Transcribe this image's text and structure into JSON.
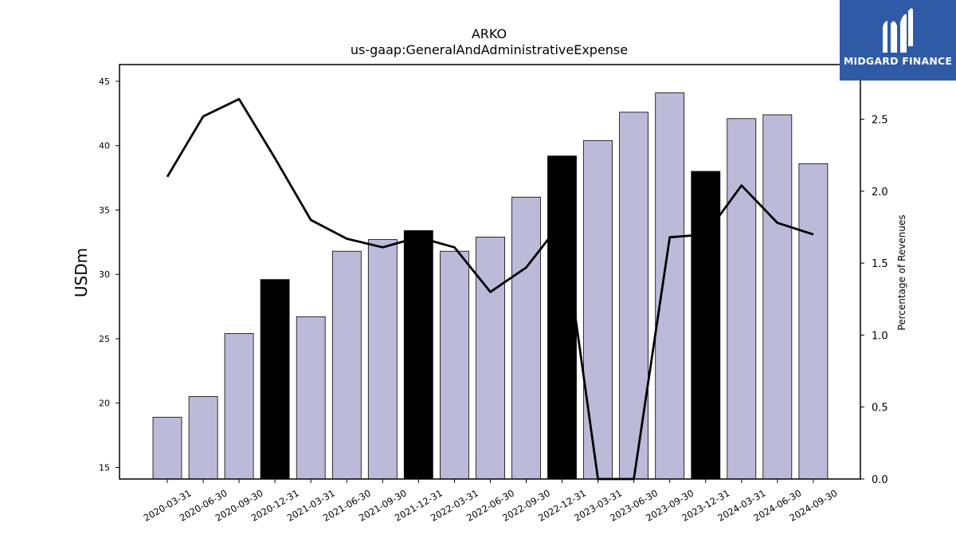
{
  "chart_data": {
    "type": "bar",
    "title": "ARKO",
    "subtitle": "us-gaap:GeneralAndAdministrativeExpense",
    "ylabel": "USDm",
    "y2label": "Percentage of Revenues",
    "ylim": [
      14.1,
      46.3
    ],
    "y2lim": [
      0.0,
      2.88
    ],
    "yticks": [
      "15",
      "20",
      "25",
      "30",
      "35",
      "40",
      "45"
    ],
    "y2ticks": [
      "0.0",
      "0.5",
      "1.0",
      "1.5",
      "2.0",
      "2.5"
    ],
    "categories": [
      "2020-03-31",
      "2020-06-30",
      "2020-09-30",
      "2020-12-31",
      "2021-03-31",
      "2021-06-30",
      "2021-09-30",
      "2021-12-31",
      "2022-03-31",
      "2022-06-30",
      "2022-09-30",
      "2022-12-31",
      "2023-03-31",
      "2023-06-30",
      "2023-09-30",
      "2023-12-31",
      "2024-03-31",
      "2024-06-30",
      "2024-09-30"
    ],
    "series": [
      {
        "kind": "bar",
        "axis": "left",
        "values": [
          18.9,
          20.5,
          25.4,
          29.6,
          26.7,
          31.8,
          32.7,
          33.4,
          31.8,
          32.9,
          36.0,
          39.2,
          40.4,
          42.6,
          44.1,
          38.0,
          42.1,
          42.4,
          38.6
        ],
        "highlight": [
          false,
          false,
          false,
          true,
          false,
          false,
          false,
          true,
          false,
          false,
          false,
          true,
          false,
          false,
          false,
          true,
          false,
          false,
          false
        ]
      },
      {
        "kind": "line",
        "axis": "right",
        "values": [
          2.1,
          2.52,
          2.64,
          2.23,
          1.8,
          1.67,
          1.61,
          1.68,
          1.61,
          1.3,
          1.47,
          1.79,
          0.0,
          0.0,
          1.68,
          1.7,
          2.04,
          1.78,
          1.7
        ]
      }
    ],
    "colors": {
      "bar": "#bdbad9",
      "bar_highlight": "#000000",
      "line": "#000000"
    },
    "grid": false,
    "legend": "none"
  },
  "brand": {
    "name": "MIDGARD FINANCE",
    "logo_icon": "midgard-logo-icon"
  }
}
